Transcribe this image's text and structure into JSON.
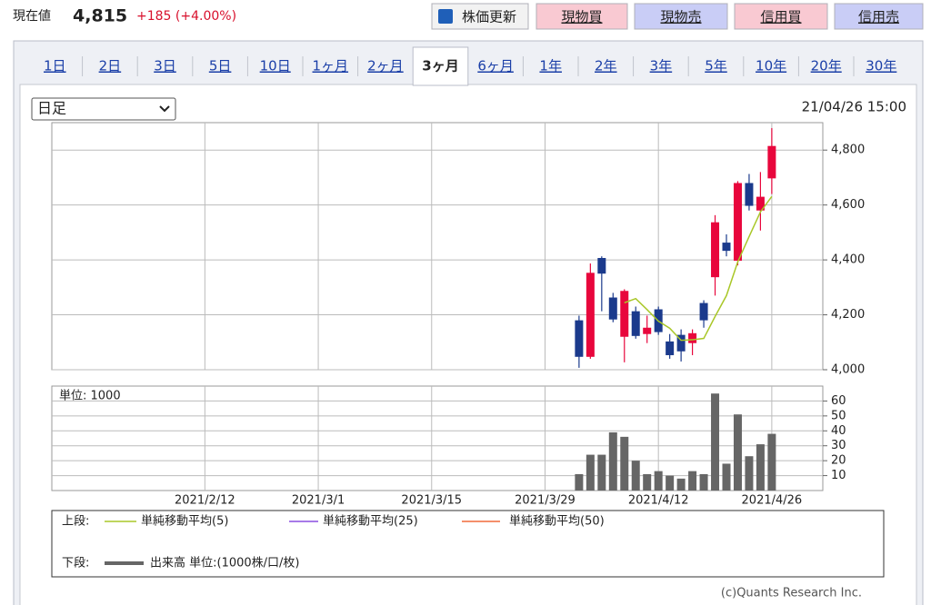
{
  "header": {
    "label": "現在値",
    "price": "4,815",
    "change": "+185 (+4.00%)"
  },
  "buttons": [
    "株価更新",
    "現物買",
    "現物売",
    "信用買",
    "信用売"
  ],
  "tabs": [
    "1日",
    "2日",
    "3日",
    "5日",
    "10日",
    "1ヶ月",
    "2ヶ月",
    "3ヶ月",
    "6ヶ月",
    "1年",
    "2年",
    "3年",
    "5年",
    "10年",
    "20年",
    "30年"
  ],
  "active_tab": 7,
  "period_select": "日足",
  "timestamp": "21/04/26 15:00",
  "chart_data": [
    {
      "type": "candlestick",
      "categories": [
        null,
        null,
        null,
        null,
        null,
        null,
        null,
        null,
        null,
        null,
        null,
        null,
        null,
        "2021/2/12",
        null,
        null,
        null,
        null,
        null,
        null,
        null,
        null,
        null,
        "2021/3/1",
        null,
        null,
        null,
        null,
        null,
        null,
        null,
        null,
        null,
        "2021/3/15",
        null,
        null,
        null,
        null,
        null,
        null,
        null,
        null,
        null,
        "2021/3/29",
        null,
        null,
        null,
        null,
        null,
        null,
        null,
        null,
        null,
        "2021/4/12",
        null,
        null,
        null,
        null,
        null,
        null,
        null,
        null,
        null,
        "2021/4/26",
        null,
        null,
        null,
        null
      ],
      "open": [
        null,
        null,
        null,
        null,
        null,
        null,
        null,
        null,
        null,
        null,
        null,
        null,
        null,
        null,
        null,
        null,
        null,
        null,
        null,
        null,
        null,
        null,
        null,
        null,
        null,
        null,
        null,
        null,
        null,
        null,
        null,
        null,
        null,
        null,
        null,
        null,
        null,
        null,
        null,
        null,
        null,
        null,
        null,
        null,
        null,
        null,
        4180,
        4047,
        4407,
        4263,
        4120,
        4213,
        4130,
        4220,
        4103,
        4127,
        4097,
        4243,
        4337,
        4463,
        4397,
        4680,
        4580,
        4697,
        null,
        null,
        null,
        null
      ],
      "high": [
        null,
        null,
        null,
        null,
        null,
        null,
        null,
        null,
        null,
        null,
        null,
        null,
        null,
        null,
        null,
        null,
        null,
        null,
        null,
        null,
        null,
        null,
        null,
        null,
        null,
        null,
        null,
        null,
        null,
        null,
        null,
        null,
        null,
        null,
        null,
        null,
        null,
        null,
        null,
        null,
        null,
        null,
        null,
        null,
        null,
        null,
        4197,
        4387,
        4413,
        4280,
        4293,
        4230,
        4197,
        4230,
        4130,
        4147,
        4147,
        4253,
        4563,
        4493,
        4687,
        4713,
        4720,
        4880,
        null,
        null,
        null,
        null
      ],
      "low": [
        null,
        null,
        null,
        null,
        null,
        null,
        null,
        null,
        null,
        null,
        null,
        null,
        null,
        null,
        null,
        null,
        null,
        null,
        null,
        null,
        null,
        null,
        null,
        null,
        null,
        null,
        null,
        null,
        null,
        null,
        null,
        null,
        null,
        null,
        null,
        null,
        null,
        null,
        null,
        null,
        null,
        null,
        null,
        null,
        null,
        null,
        4007,
        4040,
        4213,
        4173,
        4027,
        4113,
        4097,
        4127,
        4040,
        4030,
        4053,
        4153,
        4270,
        4413,
        4380,
        4580,
        4507,
        4640,
        null,
        null,
        null,
        null
      ],
      "close": [
        null,
        null,
        null,
        null,
        null,
        null,
        null,
        null,
        null,
        null,
        null,
        null,
        null,
        null,
        null,
        null,
        null,
        null,
        null,
        null,
        null,
        null,
        null,
        null,
        null,
        null,
        null,
        null,
        null,
        null,
        null,
        null,
        null,
        null,
        null,
        null,
        null,
        null,
        null,
        null,
        null,
        null,
        null,
        null,
        null,
        null,
        4047,
        4353,
        4350,
        4183,
        4287,
        4123,
        4153,
        4137,
        4053,
        4067,
        4133,
        4180,
        4537,
        4433,
        4680,
        4597,
        4630,
        4815,
        null,
        null,
        null,
        null
      ],
      "up_color": "#e8063c",
      "down_color": "#1b3a8c",
      "series": [
        {
          "name": "単純移動平均(5)",
          "color": "#a9c728",
          "values": [
            null,
            null,
            null,
            null,
            null,
            null,
            null,
            null,
            null,
            null,
            null,
            null,
            null,
            null,
            null,
            null,
            null,
            null,
            null,
            null,
            null,
            null,
            null,
            null,
            null,
            null,
            null,
            null,
            null,
            null,
            null,
            null,
            null,
            null,
            null,
            null,
            null,
            null,
            null,
            null,
            null,
            null,
            null,
            null,
            null,
            null,
            null,
            null,
            null,
            null,
            4244,
            4259,
            4219,
            4177,
            4151,
            4107,
            4109,
            4114,
            4194,
            4270,
            4393,
            4485,
            4575,
            4631,
            null,
            null,
            null,
            null
          ]
        },
        {
          "name": "単純移動平均(25)",
          "color": "#8a4fe0"
        },
        {
          "name": "単純移動平均(50)",
          "color": "#f06a3a"
        }
      ],
      "ylim": [
        4000,
        4900
      ],
      "yticks": [
        {
          "value": 4000,
          "label": "4,000"
        },
        {
          "value": 4200,
          "label": "4,200"
        },
        {
          "value": 4400,
          "label": "4,400"
        },
        {
          "value": 4600,
          "label": "4,600"
        },
        {
          "value": 4800,
          "label": "4,800"
        }
      ],
      "grid": true
    },
    {
      "type": "bar",
      "name": "出来高 単位:(1000株/口/枚)",
      "unit_label": "単位: 1000",
      "color": "#666666",
      "values": [
        null,
        null,
        null,
        null,
        null,
        null,
        null,
        null,
        null,
        null,
        null,
        null,
        null,
        null,
        null,
        null,
        null,
        null,
        null,
        null,
        null,
        null,
        null,
        null,
        null,
        null,
        null,
        null,
        null,
        null,
        null,
        null,
        null,
        null,
        null,
        null,
        null,
        null,
        null,
        null,
        null,
        null,
        null,
        null,
        null,
        null,
        11,
        24,
        24,
        39,
        36,
        20,
        11,
        13,
        10,
        8,
        13,
        11,
        65,
        18,
        51,
        23,
        31,
        38,
        null,
        null,
        null,
        null
      ],
      "ylim": [
        0,
        70
      ],
      "yticks": [
        10,
        20,
        30,
        40,
        50,
        60
      ],
      "grid": true
    }
  ],
  "legend": {
    "upper_label": "上段:",
    "lower_label": "下段:"
  },
  "footer": "(c)Quants Research Inc."
}
